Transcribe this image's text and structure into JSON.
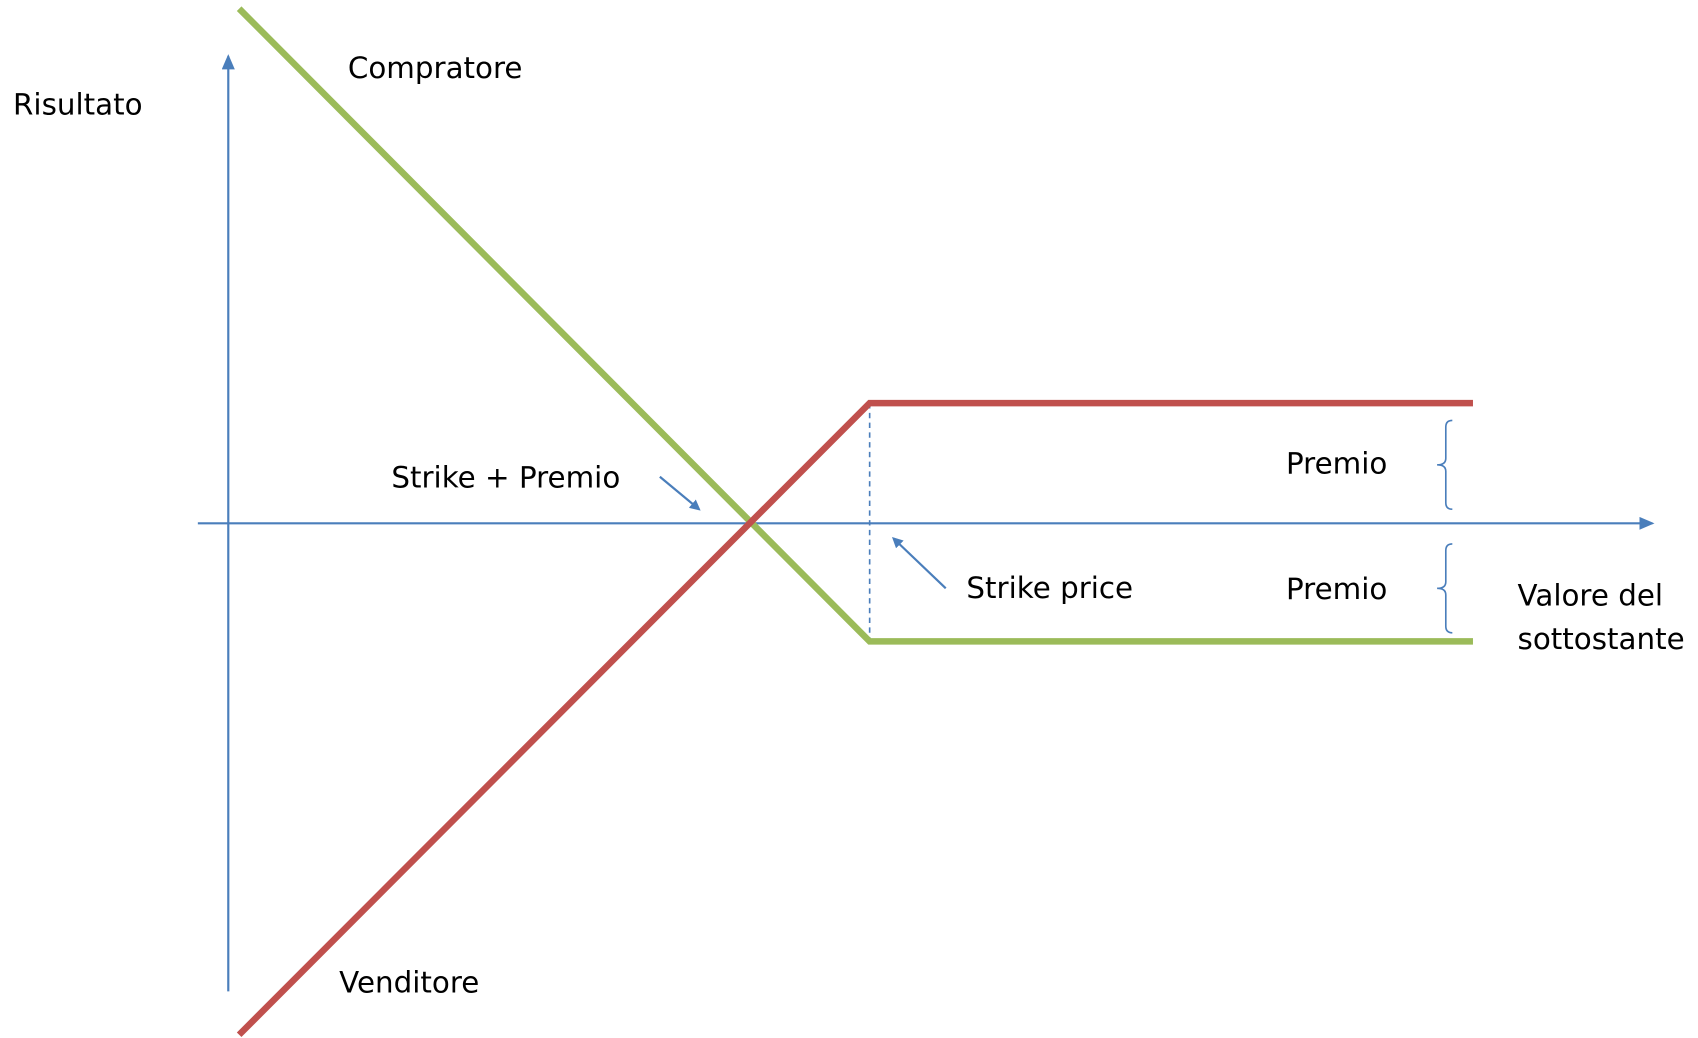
{
  "axes": {
    "y_label": "Risultato",
    "x_label": [
      "Valore del",
      "sottostante"
    ]
  },
  "lines": {
    "buyer": "Compratore",
    "seller": "Venditore"
  },
  "annotations": {
    "breakeven": "Strike + Premio",
    "strike": "Strike price",
    "premium_top": "Premio",
    "premium_bottom": "Premio"
  }
}
